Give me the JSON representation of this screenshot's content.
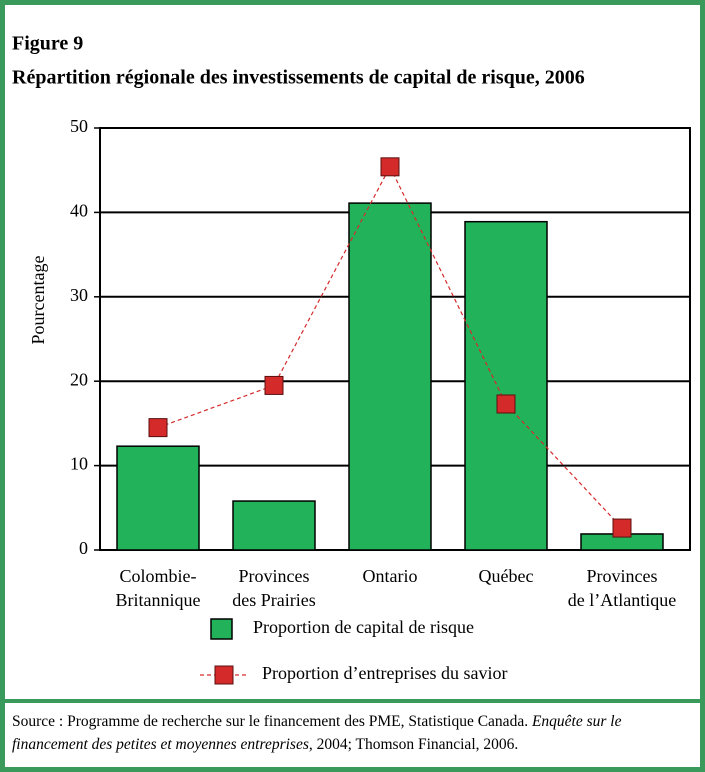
{
  "figure_label": "Figure 9",
  "chart_data": {
    "type": "bar",
    "title": "Répartition régionale des investissements de capital de risque, 2006",
    "y_label": "Pourcentage",
    "categories": [
      [
        "Colombie-",
        "Britannique"
      ],
      [
        "Provinces",
        "des Prairies"
      ],
      [
        "Ontario"
      ],
      [
        "Québec"
      ],
      [
        "Provinces",
        "de l’Atlantique"
      ]
    ],
    "series": [
      {
        "name": "Proportion de capital de risque",
        "type": "bar",
        "color": "#22b35a",
        "values": [
          12.3,
          5.8,
          41.1,
          38.9,
          1.9
        ]
      },
      {
        "name": "Proportion d’entreprises du savior",
        "type": "line",
        "color": "#d42a2a",
        "values": [
          14.5,
          19.5,
          45.4,
          17.3,
          2.6
        ]
      }
    ],
    "ylim": [
      0,
      50
    ],
    "yticks": [
      0,
      10,
      20,
      30,
      40,
      50
    ],
    "grid": true
  },
  "source": {
    "prefix": "Source : Programme de recherche sur le financement des PME, Statistique Canada. ",
    "italic": "Enquête sur le financement des petites et moyennes entreprises",
    "suffix": ", 2004; Thomson Financial, 2006."
  }
}
